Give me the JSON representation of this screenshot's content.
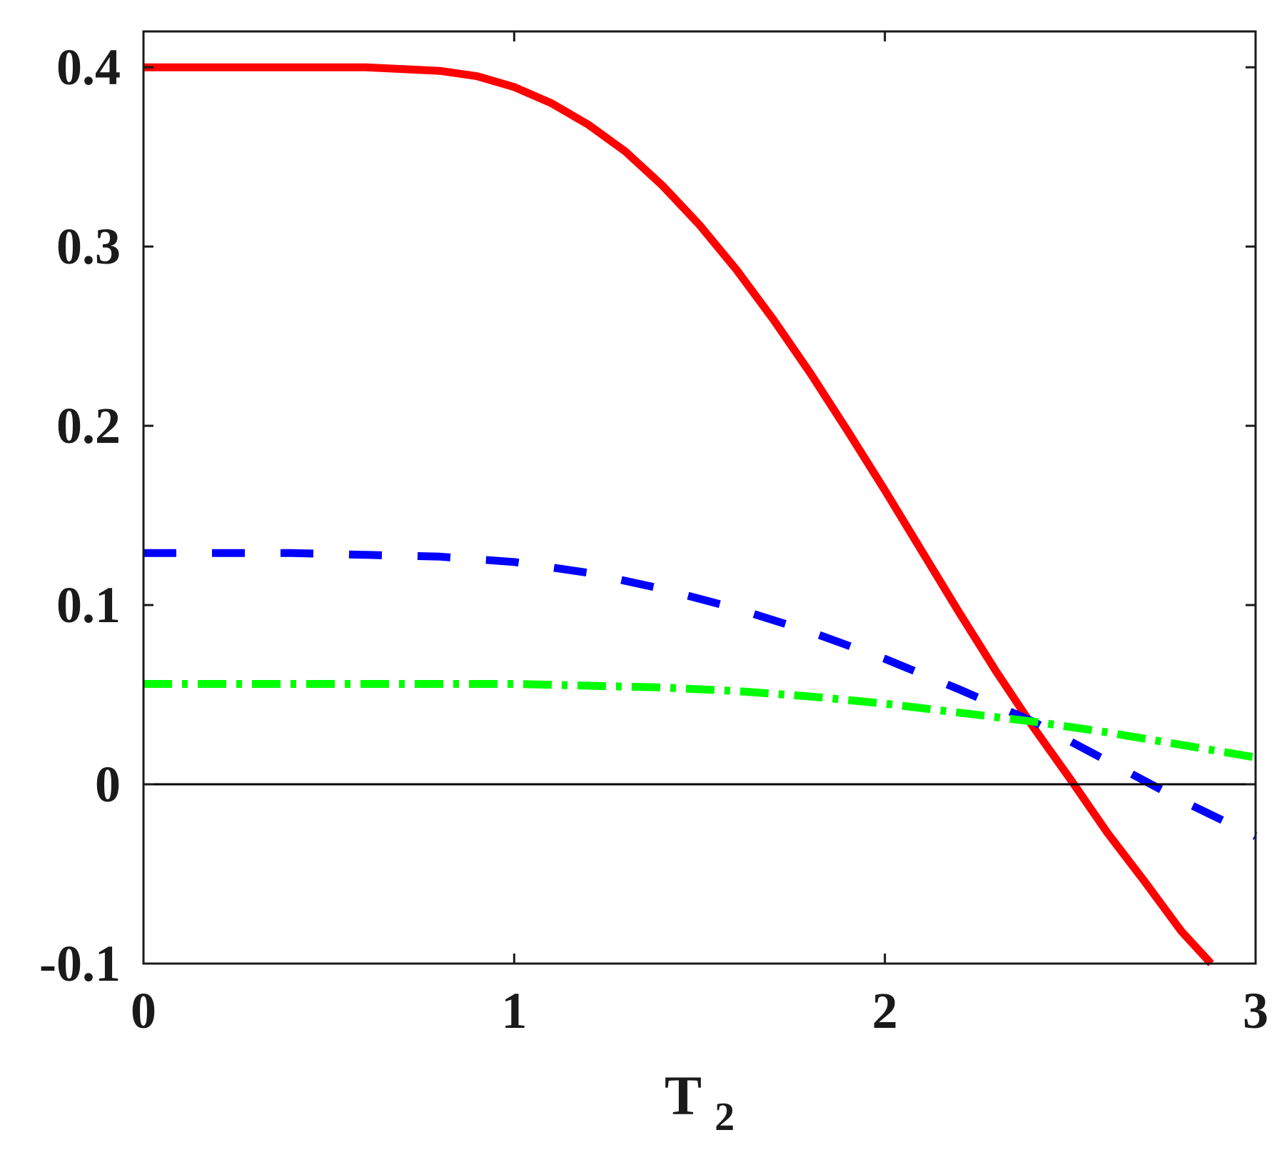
{
  "chart_data": {
    "type": "line",
    "title": "",
    "xlabel": "T",
    "xlabel_subscript": "2",
    "ylabel": "",
    "xlim": [
      0,
      3
    ],
    "ylim": [
      -0.1,
      0.42
    ],
    "xticks": [
      0,
      1,
      2,
      3
    ],
    "xtick_labels": [
      "0",
      "1",
      "2",
      "3"
    ],
    "yticks": [
      -0.1,
      0,
      0.1,
      0.2,
      0.3,
      0.4
    ],
    "ytick_labels": [
      "-0.1",
      "0",
      "0.1",
      "0.2",
      "0.3",
      "0.4"
    ],
    "grid": false,
    "legend": "none",
    "zero_line": true,
    "series": [
      {
        "color": "#ff0000",
        "style": "solid",
        "x": [
          0,
          0.2,
          0.4,
          0.6,
          0.8,
          0.9,
          1.0,
          1.1,
          1.2,
          1.3,
          1.4,
          1.5,
          1.6,
          1.7,
          1.8,
          1.9,
          2.0,
          2.1,
          2.2,
          2.3,
          2.4,
          2.5,
          2.6,
          2.7,
          2.8,
          2.88
        ],
        "values": [
          0.4,
          0.4,
          0.4,
          0.4,
          0.398,
          0.395,
          0.389,
          0.38,
          0.368,
          0.353,
          0.334,
          0.312,
          0.287,
          0.259,
          0.229,
          0.197,
          0.164,
          0.13,
          0.096,
          0.063,
          0.032,
          0.003,
          -0.027,
          -0.054,
          -0.082,
          -0.1
        ]
      },
      {
        "color": "#0000ff",
        "style": "dashed",
        "x": [
          0,
          0.2,
          0.4,
          0.6,
          0.8,
          1.0,
          1.2,
          1.4,
          1.6,
          1.8,
          2.0,
          2.2,
          2.4,
          2.6,
          2.8,
          3.0
        ],
        "values": [
          0.129,
          0.129,
          0.129,
          0.128,
          0.127,
          0.124,
          0.118,
          0.109,
          0.098,
          0.085,
          0.07,
          0.053,
          0.035,
          0.013,
          -0.009,
          -0.029
        ]
      },
      {
        "color": "#00ff00",
        "style": "dashdot",
        "x": [
          0,
          0.2,
          0.4,
          0.6,
          0.8,
          1.0,
          1.2,
          1.4,
          1.6,
          1.8,
          2.0,
          2.2,
          2.4,
          2.6,
          2.8,
          3.0
        ],
        "values": [
          0.056,
          0.056,
          0.056,
          0.056,
          0.056,
          0.056,
          0.055,
          0.054,
          0.052,
          0.049,
          0.045,
          0.04,
          0.035,
          0.029,
          0.022,
          0.015
        ]
      }
    ]
  }
}
